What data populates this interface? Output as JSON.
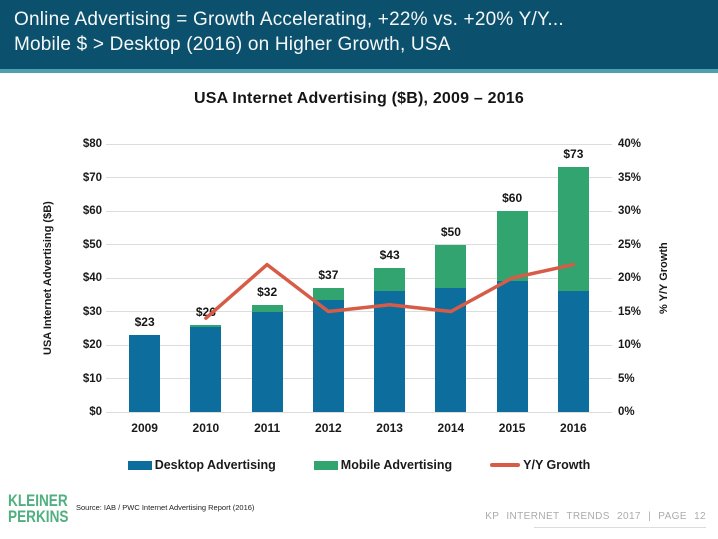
{
  "header": {
    "line1": "Online Advertising = Growth Accelerating, +22% vs. +20% Y/Y...",
    "line2": "Mobile $ > Desktop (2016) on Higher Growth, USA"
  },
  "chart_data": {
    "type": "bar",
    "subtype": "stacked-bar-with-line",
    "title": "USA Internet Advertising ($B), 2009 – 2016",
    "categories": [
      "2009",
      "2010",
      "2011",
      "2012",
      "2013",
      "2014",
      "2015",
      "2016"
    ],
    "series": [
      {
        "name": "Desktop Advertising",
        "type": "bar",
        "color": "#0D6D9D",
        "values": [
          23,
          25.5,
          30,
          33.5,
          36,
          37,
          39,
          36
        ]
      },
      {
        "name": "Mobile Advertising",
        "type": "bar",
        "color": "#32A46F",
        "values": [
          0,
          0.5,
          2,
          3.5,
          7,
          13,
          21,
          37
        ]
      },
      {
        "name": "Y/Y Growth",
        "type": "line",
        "color": "#D75C48",
        "axis": "right",
        "values": [
          null,
          14,
          22,
          15,
          16,
          15,
          20,
          22
        ]
      }
    ],
    "bar_total_labels": [
      "$23",
      "$26",
      "$32",
      "$37",
      "$43",
      "$50",
      "$60",
      "$73"
    ],
    "bar_totals": [
      23,
      26,
      32,
      37,
      43,
      50,
      60,
      73
    ],
    "left_axis": {
      "label": "USA Internet Advertising ($B)",
      "min": 0,
      "max": 80,
      "step": 10,
      "prefix": "$",
      "suffix": ""
    },
    "right_axis": {
      "label": "% Y/Y Growth",
      "min": 0,
      "max": 40,
      "step": 5,
      "prefix": "",
      "suffix": "%"
    },
    "stacked": true,
    "grid": true,
    "legend_position": "bottom"
  },
  "footer": {
    "logo_line1": "KLEINER",
    "logo_line2": "PERKINS",
    "source": "Source: IAB / PWC Internet Advertising Report (2016)",
    "page_info": "KP INTERNET TRENDS 2017 | PAGE 12"
  },
  "colors": {
    "header_bg": "#0B516E",
    "header_strip": "#4D9FB2",
    "desktop_bar": "#0D6D9D",
    "mobile_bar": "#32A46F",
    "growth_line": "#D75C48",
    "logo_green": "#50AF7F",
    "gridline": "#DCDCDC",
    "page_info_gray": "#ABABAB"
  }
}
